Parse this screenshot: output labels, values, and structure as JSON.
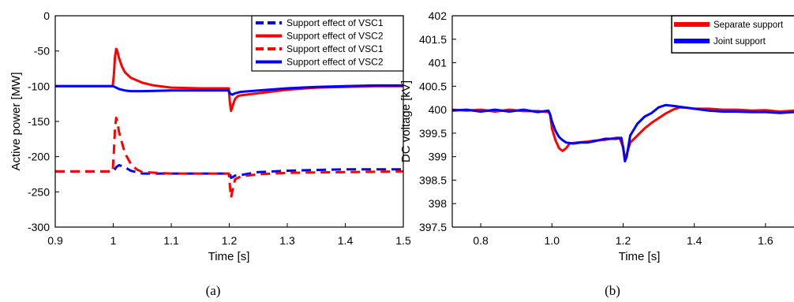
{
  "chart_data": [
    {
      "type": "line",
      "panel_label": "(a)",
      "xlabel": "Time [s]",
      "ylabel": "Active power [MW]",
      "xlim": [
        0.9,
        1.5
      ],
      "ylim": [
        -300,
        0
      ],
      "xticks": [
        "0.9",
        "1",
        "1.1",
        "1.2",
        "1.3",
        "1.4",
        "1.5"
      ],
      "yticks": [
        "0",
        "-50",
        "-100",
        "-150",
        "-200",
        "-250",
        "-300"
      ],
      "grid": false,
      "legend_position": "top-right",
      "series": [
        {
          "name": "Support effect of VSC1",
          "color": "#0000ff",
          "dash": true,
          "points": [
            [
              0.9,
              -221
            ],
            [
              1.0,
              -221
            ],
            [
              1.002,
              -219
            ],
            [
              1.005,
              -215
            ],
            [
              1.01,
              -212
            ],
            [
              1.02,
              -215
            ],
            [
              1.03,
              -220
            ],
            [
              1.05,
              -224
            ],
            [
              1.1,
              -224
            ],
            [
              1.15,
              -224
            ],
            [
              1.199,
              -224
            ],
            [
              1.201,
              -224
            ],
            [
              1.203,
              -230
            ],
            [
              1.206,
              -229
            ],
            [
              1.21,
              -227
            ],
            [
              1.22,
              -226
            ],
            [
              1.25,
              -222
            ],
            [
              1.3,
              -220
            ],
            [
              1.35,
              -219
            ],
            [
              1.4,
              -218
            ],
            [
              1.45,
              -218
            ],
            [
              1.5,
              -218
            ]
          ]
        },
        {
          "name": "Support effect of VSC2",
          "color": "#ff0000",
          "dash": false,
          "points": [
            [
              0.9,
              -100
            ],
            [
              0.95,
              -100
            ],
            [
              0.999,
              -100
            ],
            [
              1.001,
              -85
            ],
            [
              1.003,
              -58
            ],
            [
              1.005,
              -47
            ],
            [
              1.007,
              -50
            ],
            [
              1.01,
              -60
            ],
            [
              1.015,
              -72
            ],
            [
              1.02,
              -80
            ],
            [
              1.03,
              -88
            ],
            [
              1.05,
              -95
            ],
            [
              1.07,
              -99
            ],
            [
              1.1,
              -102
            ],
            [
              1.15,
              -103
            ],
            [
              1.199,
              -103
            ],
            [
              1.201,
              -122
            ],
            [
              1.203,
              -135
            ],
            [
              1.205,
              -130
            ],
            [
              1.21,
              -118
            ],
            [
              1.215,
              -114
            ],
            [
              1.22,
              -113
            ],
            [
              1.25,
              -110
            ],
            [
              1.3,
              -105
            ],
            [
              1.35,
              -102
            ],
            [
              1.4,
              -101
            ],
            [
              1.45,
              -100
            ],
            [
              1.5,
              -100
            ]
          ]
        },
        {
          "name": "Support effect of VSC1",
          "color": "#ff0000",
          "dash": true,
          "points": [
            [
              0.9,
              -221
            ],
            [
              0.95,
              -221
            ],
            [
              0.999,
              -221
            ],
            [
              1.001,
              -195
            ],
            [
              1.003,
              -160
            ],
            [
              1.005,
              -145
            ],
            [
              1.007,
              -150
            ],
            [
              1.01,
              -165
            ],
            [
              1.015,
              -180
            ],
            [
              1.02,
              -195
            ],
            [
              1.03,
              -210
            ],
            [
              1.04,
              -218
            ],
            [
              1.05,
              -222
            ],
            [
              1.1,
              -224
            ],
            [
              1.15,
              -224
            ],
            [
              1.199,
              -224
            ],
            [
              1.201,
              -240
            ],
            [
              1.203,
              -258
            ],
            [
              1.205,
              -250
            ],
            [
              1.21,
              -232
            ],
            [
              1.22,
              -228
            ],
            [
              1.25,
              -225
            ],
            [
              1.3,
              -223
            ],
            [
              1.4,
              -222
            ],
            [
              1.5,
              -221
            ]
          ]
        },
        {
          "name": "Support effect of VSC2",
          "color": "#0000ff",
          "dash": false,
          "points": [
            [
              0.9,
              -100
            ],
            [
              0.95,
              -100
            ],
            [
              0.999,
              -100
            ],
            [
              1.0,
              -100
            ],
            [
              1.005,
              -102
            ],
            [
              1.01,
              -104
            ],
            [
              1.02,
              -106
            ],
            [
              1.03,
              -107
            ],
            [
              1.05,
              -107
            ],
            [
              1.1,
              -106
            ],
            [
              1.15,
              -106
            ],
            [
              1.199,
              -106
            ],
            [
              1.201,
              -110
            ],
            [
              1.205,
              -112
            ],
            [
              1.21,
              -110
            ],
            [
              1.22,
              -108
            ],
            [
              1.25,
              -106
            ],
            [
              1.3,
              -103
            ],
            [
              1.35,
              -101
            ],
            [
              1.4,
              -100
            ],
            [
              1.45,
              -99
            ],
            [
              1.5,
              -99
            ]
          ]
        }
      ]
    },
    {
      "type": "line",
      "panel_label": "(b)",
      "xlabel": "Time [s]",
      "ylabel": "DC  voltage [kV]",
      "xlim": [
        0.72,
        1.68
      ],
      "ylim": [
        397.5,
        402
      ],
      "xticks": [
        "0.8",
        "1.0",
        "1.2",
        "1.4",
        "1.6"
      ],
      "yticks": [
        "402",
        "401.5",
        "401",
        "400.5",
        "400",
        "399.5",
        "399",
        "398.5",
        "398",
        "397.5"
      ],
      "grid": false,
      "legend_position": "top-right",
      "series": [
        {
          "name": "Separate support",
          "color": "#ff0000",
          "points": [
            [
              0.72,
              400.0
            ],
            [
              0.76,
              399.98
            ],
            [
              0.8,
              400.0
            ],
            [
              0.84,
              399.96
            ],
            [
              0.88,
              400.0
            ],
            [
              0.92,
              399.97
            ],
            [
              0.96,
              399.97
            ],
            [
              0.99,
              399.95
            ],
            [
              0.995,
              399.9
            ],
            [
              1.0,
              399.6
            ],
            [
              1.01,
              399.35
            ],
            [
              1.02,
              399.18
            ],
            [
              1.03,
              399.12
            ],
            [
              1.04,
              399.18
            ],
            [
              1.05,
              399.28
            ],
            [
              1.07,
              399.3
            ],
            [
              1.1,
              399.32
            ],
            [
              1.12,
              399.34
            ],
            [
              1.15,
              399.36
            ],
            [
              1.18,
              399.4
            ],
            [
              1.19,
              399.4
            ],
            [
              1.2,
              399.2
            ],
            [
              1.205,
              398.95
            ],
            [
              1.21,
              399.05
            ],
            [
              1.22,
              399.3
            ],
            [
              1.24,
              399.45
            ],
            [
              1.26,
              399.6
            ],
            [
              1.28,
              399.72
            ],
            [
              1.3,
              399.82
            ],
            [
              1.32,
              399.92
            ],
            [
              1.34,
              400.0
            ],
            [
              1.36,
              400.05
            ],
            [
              1.38,
              400.04
            ],
            [
              1.4,
              400.02
            ],
            [
              1.44,
              400.02
            ],
            [
              1.48,
              400.0
            ],
            [
              1.52,
              400.0
            ],
            [
              1.56,
              399.98
            ],
            [
              1.6,
              399.99
            ],
            [
              1.64,
              399.96
            ],
            [
              1.68,
              399.98
            ]
          ]
        },
        {
          "name": "Joint support",
          "color": "#0000ff",
          "points": [
            [
              0.72,
              399.98
            ],
            [
              0.76,
              400.0
            ],
            [
              0.8,
              399.96
            ],
            [
              0.84,
              400.0
            ],
            [
              0.88,
              399.96
            ],
            [
              0.92,
              400.0
            ],
            [
              0.96,
              399.95
            ],
            [
              0.99,
              399.98
            ],
            [
              0.995,
              399.9
            ],
            [
              1.0,
              399.75
            ],
            [
              1.01,
              399.55
            ],
            [
              1.02,
              399.42
            ],
            [
              1.03,
              399.35
            ],
            [
              1.04,
              399.3
            ],
            [
              1.06,
              399.28
            ],
            [
              1.08,
              399.3
            ],
            [
              1.1,
              399.3
            ],
            [
              1.12,
              399.33
            ],
            [
              1.15,
              399.38
            ],
            [
              1.18,
              399.38
            ],
            [
              1.195,
              399.4
            ],
            [
              1.2,
              399.2
            ],
            [
              1.205,
              398.9
            ],
            [
              1.21,
              399.0
            ],
            [
              1.22,
              399.45
            ],
            [
              1.24,
              399.7
            ],
            [
              1.26,
              399.85
            ],
            [
              1.28,
              399.93
            ],
            [
              1.3,
              400.05
            ],
            [
              1.32,
              400.1
            ],
            [
              1.34,
              400.08
            ],
            [
              1.36,
              400.06
            ],
            [
              1.38,
              400.04
            ],
            [
              1.4,
              400.02
            ],
            [
              1.44,
              399.98
            ],
            [
              1.48,
              399.96
            ],
            [
              1.52,
              399.96
            ],
            [
              1.56,
              399.95
            ],
            [
              1.6,
              399.95
            ],
            [
              1.64,
              399.93
            ],
            [
              1.68,
              399.95
            ]
          ]
        }
      ]
    }
  ]
}
